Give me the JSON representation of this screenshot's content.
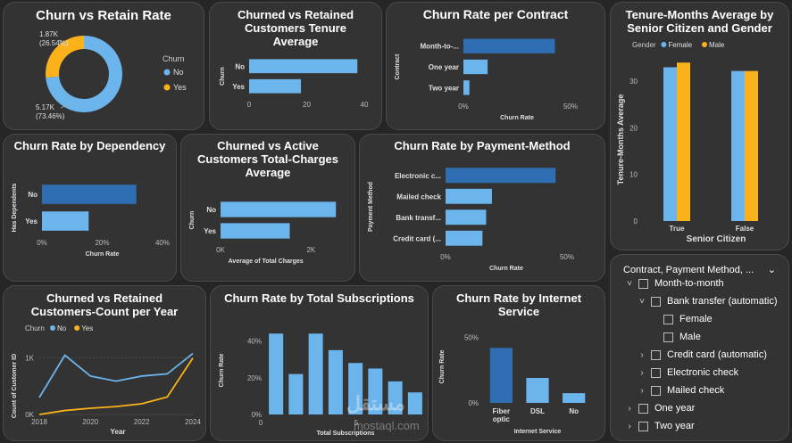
{
  "colors": {
    "no": "#6cb4ec",
    "yes": "#fbb21a",
    "dark": "#2f6eb3",
    "light": "#6cb4ec",
    "axis": "#bdbdbd",
    "grid": "#555555"
  },
  "chart_data": [
    {
      "id": "c1",
      "type": "pie",
      "title": "Churn vs Retain Rate",
      "legend_title": "Churn",
      "legend": [
        "No",
        "Yes"
      ],
      "slices": [
        {
          "label": "No",
          "value": 5.17,
          "display": "5.17K",
          "percent": "(73.46%)"
        },
        {
          "label": "Yes",
          "value": 1.87,
          "display": "1.87K",
          "percent": "(26.54%)"
        }
      ]
    },
    {
      "id": "c2",
      "type": "bar",
      "orientation": "horizontal",
      "title": "Churned vs Retained Customers Tenure Average",
      "ylabel": "Churn",
      "categories": [
        "No",
        "Yes"
      ],
      "values": [
        37.6,
        18.0
      ],
      "xlim": [
        0,
        40
      ],
      "xticks": [
        "0",
        "20",
        "40"
      ]
    },
    {
      "id": "c3",
      "type": "bar",
      "orientation": "horizontal",
      "title": "Churn Rate per Contract",
      "ylabel": "Contract",
      "xlabel": "Churn Rate",
      "categories": [
        "Month-to-...",
        "One year",
        "Two year"
      ],
      "values": [
        42.7,
        11.3,
        2.8
      ],
      "xlim": [
        0,
        50
      ],
      "xticks": [
        "0%",
        "50%"
      ],
      "highlight": 0
    },
    {
      "id": "c4",
      "type": "bar",
      "title": "Tenure-Months Average by Senior Citizen and Gender",
      "ylabel": "Tenure-Months Average",
      "xlabel": "Senior Citizen",
      "legend_title": "Gender",
      "legend": [
        "Female",
        "Male"
      ],
      "categories": [
        "True",
        "False"
      ],
      "series": [
        {
          "name": "Female",
          "values": [
            33.0,
            32.2
          ]
        },
        {
          "name": "Male",
          "values": [
            34.0,
            32.2
          ]
        }
      ],
      "ylim": [
        0,
        35
      ],
      "yticks": [
        "0",
        "10",
        "20",
        "30"
      ]
    },
    {
      "id": "c5",
      "type": "bar",
      "orientation": "horizontal",
      "title": "Churn Rate by Dependency",
      "ylabel": "Has Dependents",
      "xlabel": "Churn Rate",
      "categories": [
        "No",
        "Yes"
      ],
      "values": [
        31.3,
        15.5
      ],
      "xlim": [
        0,
        40
      ],
      "xticks": [
        "0%",
        "20%",
        "40%"
      ],
      "highlight": 0
    },
    {
      "id": "c6",
      "type": "bar",
      "orientation": "horizontal",
      "title": "Churned vs Active Customers Total-Charges Average",
      "ylabel": "Churn",
      "xlabel": "Average of Total Charges",
      "categories": [
        "No",
        "Yes"
      ],
      "values": [
        2550,
        1530
      ],
      "xlim": [
        0,
        3000
      ],
      "xticks": [
        "0K",
        "2K"
      ]
    },
    {
      "id": "c7",
      "type": "bar",
      "orientation": "horizontal",
      "title": "Churn Rate by Payment-Method",
      "ylabel": "Payment Method",
      "xlabel": "Churn Rate",
      "categories": [
        "Electronic c...",
        "Mailed check",
        "Bank transf...",
        "Credit card (..."
      ],
      "values": [
        45.3,
        19.1,
        16.7,
        15.2
      ],
      "xlim": [
        0,
        50
      ],
      "xticks": [
        "0%",
        "50%"
      ],
      "highlight": 0
    },
    {
      "id": "c8",
      "type": "line",
      "title": "Churned vs Retained Customers-Count per Year",
      "legend_title": "Churn",
      "legend": [
        "No",
        "Yes"
      ],
      "ylabel": "Count of Customer ID",
      "xlabel": "Year",
      "x": [
        2018,
        2019,
        2020,
        2021,
        2022,
        2023,
        2024
      ],
      "series": [
        {
          "name": "No",
          "values": [
            300,
            1050,
            680,
            590,
            680,
            720,
            1080
          ]
        },
        {
          "name": "Yes",
          "values": [
            0,
            70,
            110,
            140,
            190,
            310,
            1000
          ]
        }
      ],
      "ylim": [
        0,
        1200
      ],
      "yticks": [
        "0K",
        "1K"
      ],
      "xticks": [
        "2018",
        "2020",
        "2022",
        "2024"
      ]
    },
    {
      "id": "c9",
      "type": "bar",
      "title": "Churn Rate by Total Subscriptions",
      "ylabel": "Churn Rate",
      "xlabel": "Total Subscriptions",
      "categories": [
        1,
        2,
        3,
        4,
        5,
        6,
        7,
        8
      ],
      "values": [
        44,
        22,
        44,
        35,
        28,
        25,
        18,
        12
      ],
      "ylim": [
        0,
        48
      ],
      "yticks": [
        "0%",
        "20%",
        "40%"
      ],
      "xticks": [
        "0",
        "5"
      ]
    },
    {
      "id": "c10",
      "type": "bar",
      "title": "Churn Rate by Internet Service",
      "ylabel": "Churn Rate",
      "xlabel": "Internet Service",
      "categories": [
        "Fiber optic",
        "DSL",
        "No"
      ],
      "values": [
        41.9,
        19.0,
        7.4
      ],
      "ylim": [
        0,
        55
      ],
      "yticks": [
        "0%",
        "50%"
      ],
      "highlight": 0
    }
  ],
  "slicer": {
    "header": "Contract, Payment Method, ...",
    "items": [
      {
        "label": "Month-to-month",
        "level": 0,
        "expander": "down"
      },
      {
        "label": "Bank transfer (automatic)",
        "level": 1,
        "expander": "down"
      },
      {
        "label": "Female",
        "level": 2,
        "expander": ""
      },
      {
        "label": "Male",
        "level": 2,
        "expander": ""
      },
      {
        "label": "Credit card (automatic)",
        "level": 1,
        "expander": "right"
      },
      {
        "label": "Electronic check",
        "level": 1,
        "expander": "right"
      },
      {
        "label": "Mailed check",
        "level": 1,
        "expander": "right"
      },
      {
        "label": "One year",
        "level": 0,
        "expander": "right"
      },
      {
        "label": "Two year",
        "level": 0,
        "expander": "right"
      }
    ]
  },
  "watermark": {
    "arabic": "مستقل",
    "latin": "mostaql.com"
  }
}
